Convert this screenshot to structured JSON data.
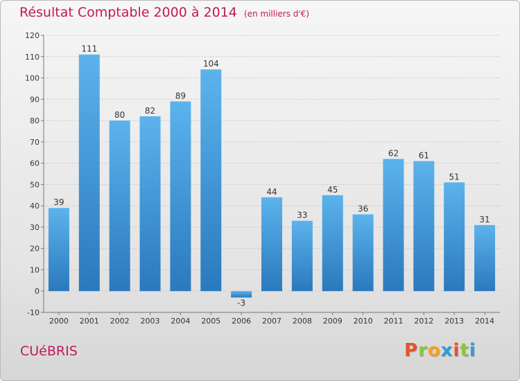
{
  "header": {
    "title": "Résultat Comptable 2000 à 2014",
    "unit": "(en milliers d'€)"
  },
  "footer": {
    "commune": "CUéBRIS",
    "brand": "Proxiti",
    "brand_letter_colors": [
      "#e8532a",
      "#8cc63f",
      "#f7a11a",
      "#2e9bd6",
      "#e8532a",
      "#8cc63f",
      "#2e9bd6"
    ]
  },
  "colors": {
    "title": "#c2185b",
    "bar_light": "#5cb3ec",
    "bar_dark": "#2a79bd",
    "axis": "#777777",
    "grid": "#c8c8c8"
  },
  "chart_data": {
    "type": "bar",
    "title": "Résultat Comptable 2000 à 2014",
    "ylabel": "(en milliers d'€)",
    "xlabel": "",
    "categories": [
      "2000",
      "2001",
      "2002",
      "2003",
      "2004",
      "2005",
      "2006",
      "2007",
      "2008",
      "2009",
      "2010",
      "2011",
      "2012",
      "2013",
      "2014"
    ],
    "values": [
      39,
      111,
      80,
      82,
      89,
      104,
      -3,
      44,
      33,
      45,
      36,
      62,
      61,
      51,
      31
    ],
    "ylim": [
      -10,
      120
    ],
    "yticks": [
      -10,
      0,
      10,
      20,
      30,
      40,
      50,
      60,
      70,
      80,
      90,
      100,
      110,
      120
    ],
    "grid": true
  }
}
